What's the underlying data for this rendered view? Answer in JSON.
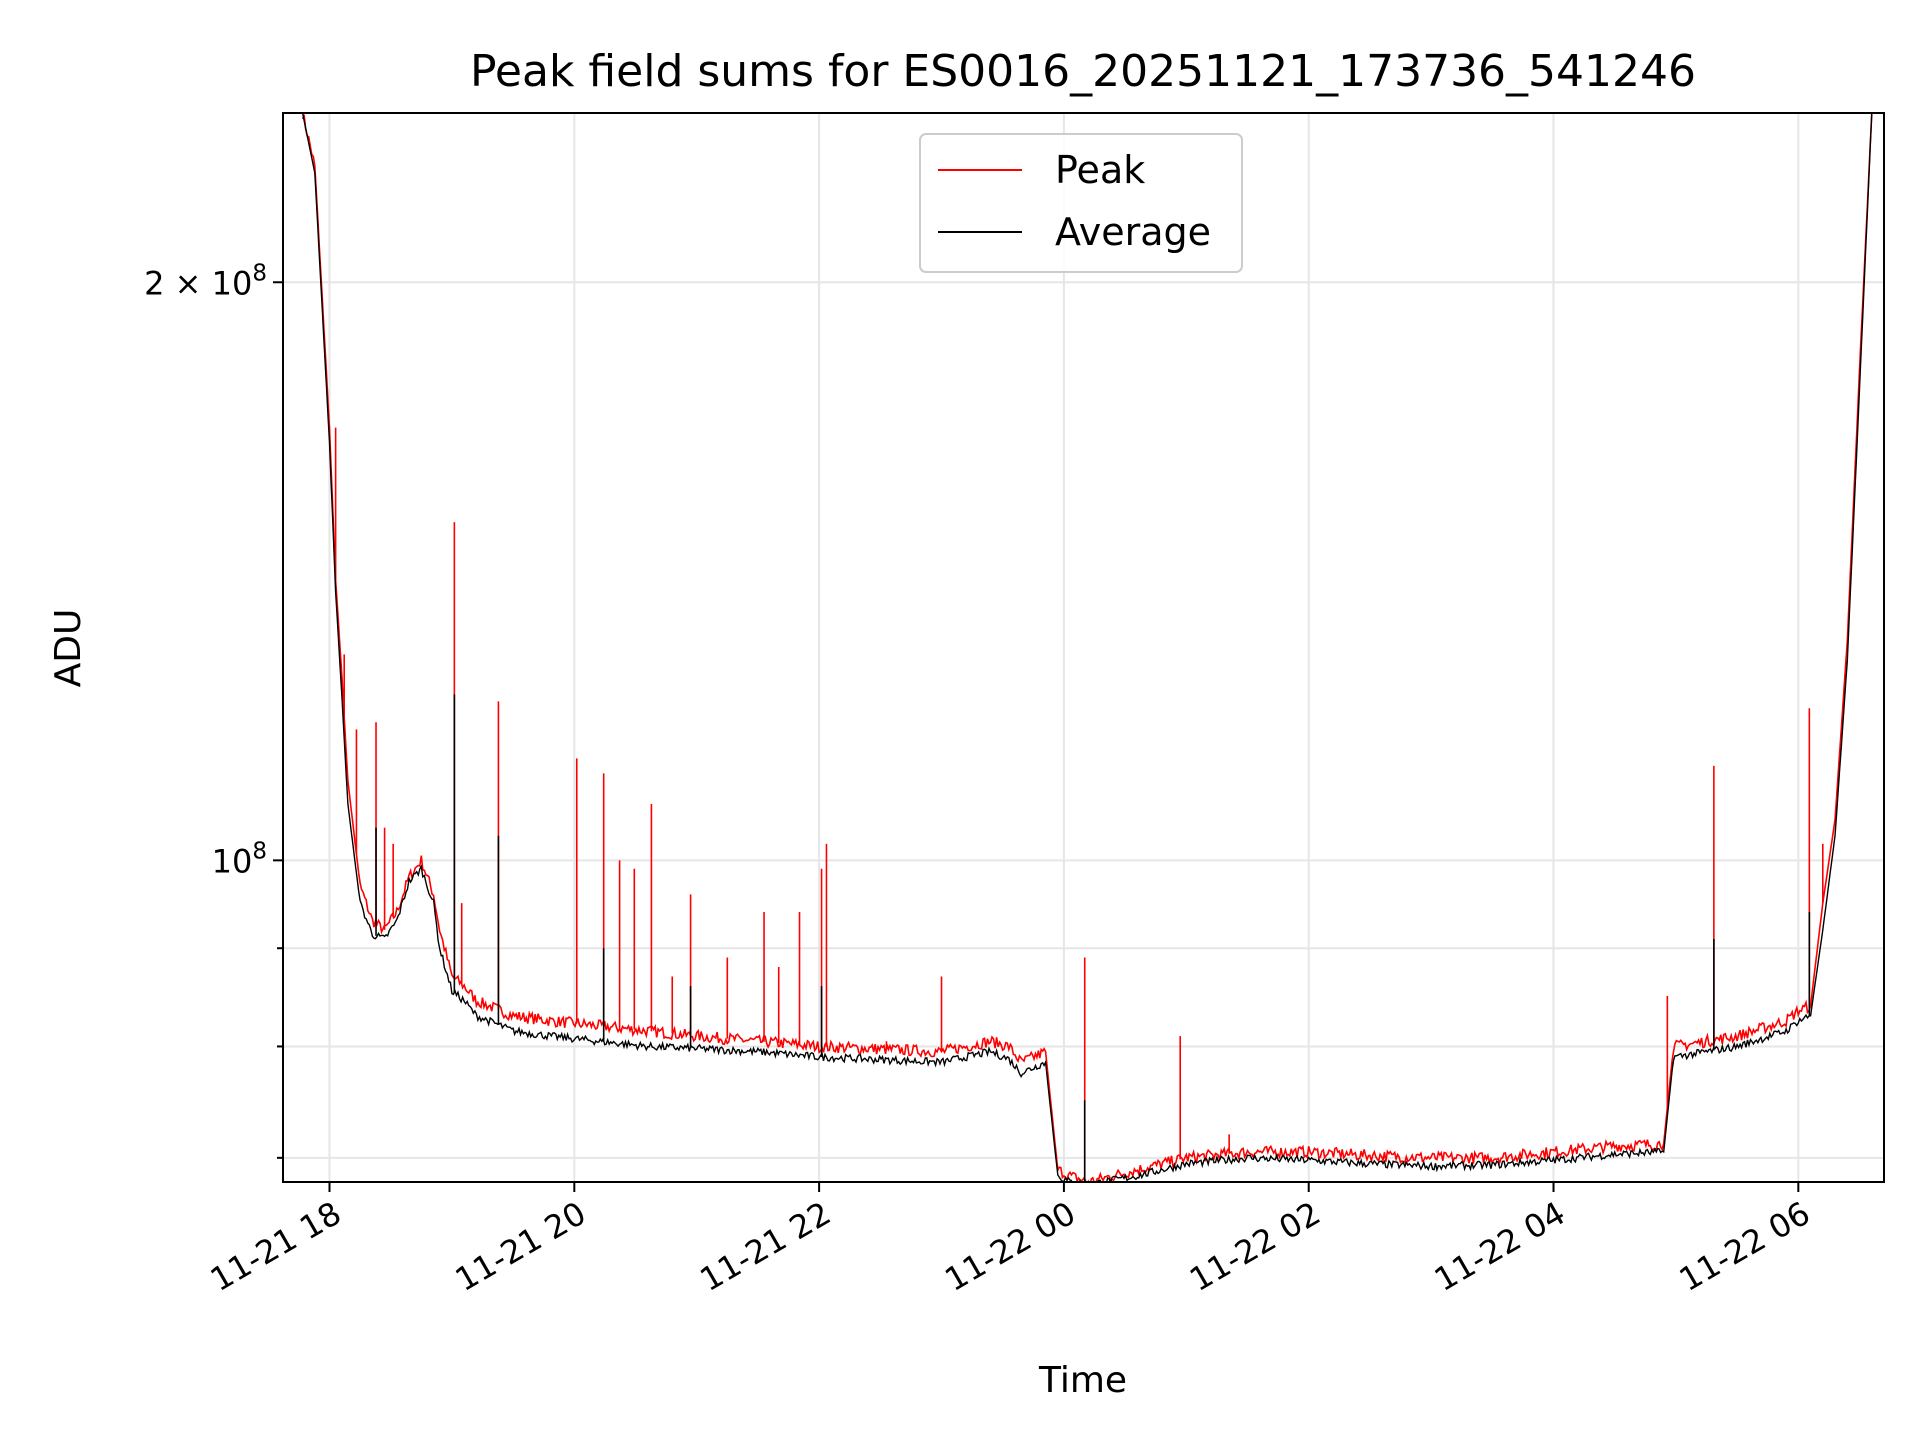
{
  "chart_data": {
    "type": "line",
    "title": "Peak field sums for ES0016_20251121_173736_541246",
    "xlabel": "Time",
    "ylabel": "ADU",
    "yscale": "log",
    "ylim": [
      68000000,
      245000000
    ],
    "xlim_hours": [
      -0.38,
      12.7
    ],
    "x_tick_hours": [
      0,
      2,
      4,
      6,
      8,
      10,
      12
    ],
    "x_tick_labels": [
      "11-21 18",
      "11-21 20",
      "11-21 22",
      "11-22 00",
      "11-22 02",
      "11-22 04",
      "11-22 06"
    ],
    "y_major_ticks": [
      {
        "value": 100000000,
        "base": "10",
        "exp": "8",
        "coef": ""
      },
      {
        "value": 200000000,
        "base": "10",
        "exp": "8",
        "coef": "2 × "
      }
    ],
    "y_minor_ticks": [
      70000000,
      80000000,
      90000000
    ],
    "legend": {
      "location": "upper center",
      "entries": [
        "Peak",
        "Average"
      ]
    },
    "series": [
      {
        "name": "Peak",
        "color": "#ff0000",
        "x": [
          -0.22,
          -0.12,
          0.0,
          0.05,
          0.1,
          0.15,
          0.25,
          0.35,
          0.45,
          0.55,
          0.65,
          0.75,
          0.85,
          0.9,
          1.0,
          1.1,
          1.2,
          1.3,
          1.4,
          1.5,
          1.8,
          2.2,
          2.6,
          3.0,
          3.5,
          4.0,
          5.0,
          5.4,
          5.55,
          5.65,
          5.85,
          5.95,
          6.05,
          6.2,
          6.6,
          7.0,
          7.5,
          8.0,
          8.5,
          9.0,
          9.5,
          10.0,
          10.5,
          10.9,
          10.98,
          11.1,
          11.5,
          11.9,
          12.0,
          12.1,
          12.2,
          12.3,
          12.4,
          12.5,
          12.6
        ],
        "y": [
          245000000,
          230000000,
          168000000,
          140000000,
          125000000,
          110000000,
          97000000,
          93000000,
          92000000,
          94000000,
          98000000,
          100000000,
          96000000,
          92000000,
          87000000,
          86000000,
          84500000,
          84000000,
          83500000,
          83000000,
          82500000,
          82000000,
          81500000,
          81000000,
          80500000,
          80000000,
          79500000,
          80500000,
          80000000,
          78500000,
          79500000,
          69000000,
          68500000,
          68000000,
          69000000,
          70000000,
          70500000,
          70500000,
          70200000,
          70000000,
          70000000,
          70500000,
          71000000,
          71200000,
          80000000,
          80200000,
          81000000,
          82500000,
          83500000,
          84000000,
          95000000,
          105000000,
          130000000,
          180000000,
          245000000
        ],
        "spikes": [
          {
            "x": 0.05,
            "y": 168000000
          },
          {
            "x": 0.12,
            "y": 128000000
          },
          {
            "x": 0.22,
            "y": 117000000
          },
          {
            "x": 0.38,
            "y": 118000000
          },
          {
            "x": 0.45,
            "y": 104000000
          },
          {
            "x": 0.52,
            "y": 102000000
          },
          {
            "x": 1.02,
            "y": 150000000
          },
          {
            "x": 1.08,
            "y": 95000000
          },
          {
            "x": 1.38,
            "y": 121000000
          },
          {
            "x": 2.02,
            "y": 113000000
          },
          {
            "x": 2.24,
            "y": 111000000
          },
          {
            "x": 2.37,
            "y": 100000000
          },
          {
            "x": 2.49,
            "y": 99000000
          },
          {
            "x": 2.63,
            "y": 107000000
          },
          {
            "x": 2.8,
            "y": 87000000
          },
          {
            "x": 2.95,
            "y": 96000000
          },
          {
            "x": 3.25,
            "y": 89000000
          },
          {
            "x": 3.55,
            "y": 94000000
          },
          {
            "x": 3.67,
            "y": 88000000
          },
          {
            "x": 3.84,
            "y": 94000000
          },
          {
            "x": 4.02,
            "y": 99000000
          },
          {
            "x": 4.06,
            "y": 102000000
          },
          {
            "x": 4.55,
            "y": 80500000
          },
          {
            "x": 5.0,
            "y": 87000000
          },
          {
            "x": 6.17,
            "y": 89000000
          },
          {
            "x": 6.95,
            "y": 81000000
          },
          {
            "x": 7.35,
            "y": 72000000
          },
          {
            "x": 10.93,
            "y": 85000000
          },
          {
            "x": 11.31,
            "y": 112000000
          },
          {
            "x": 12.09,
            "y": 120000000
          },
          {
            "x": 12.2,
            "y": 102000000
          }
        ]
      },
      {
        "name": "Average",
        "color": "#000000",
        "x": [
          -0.22,
          -0.12,
          0.0,
          0.05,
          0.1,
          0.15,
          0.25,
          0.35,
          0.45,
          0.55,
          0.65,
          0.75,
          0.85,
          0.9,
          1.0,
          1.1,
          1.2,
          1.3,
          1.4,
          1.5,
          1.8,
          2.2,
          2.6,
          3.0,
          3.5,
          4.0,
          5.0,
          5.4,
          5.55,
          5.65,
          5.85,
          5.95,
          6.05,
          6.2,
          6.6,
          7.0,
          7.5,
          8.0,
          8.5,
          9.0,
          9.5,
          10.0,
          10.5,
          10.9,
          10.98,
          11.1,
          11.5,
          11.9,
          12.0,
          12.1,
          12.2,
          12.3,
          12.4,
          12.5,
          12.6
        ],
        "y": [
          245000000,
          228000000,
          165000000,
          138000000,
          122000000,
          107000000,
          95000000,
          91500000,
          91000000,
          93000000,
          97500000,
          99000000,
          95000000,
          90000000,
          85500000,
          84500000,
          83000000,
          82500000,
          82000000,
          81500000,
          81000000,
          80500000,
          80000000,
          79800000,
          79500000,
          79000000,
          78500000,
          79500000,
          78800000,
          77500000,
          78500000,
          68500000,
          68000000,
          67800000,
          68500000,
          69500000,
          70000000,
          69800000,
          69500000,
          69300000,
          69400000,
          69800000,
          70300000,
          70500000,
          79000000,
          79200000,
          80000000,
          81500000,
          82500000,
          83000000,
          92000000,
          103000000,
          127000000,
          176000000,
          245000000
        ],
        "spikes": [
          {
            "x": 1.02,
            "y": 122000000
          },
          {
            "x": 1.38,
            "y": 103000000
          },
          {
            "x": 0.38,
            "y": 104000000
          },
          {
            "x": 11.31,
            "y": 91000000
          },
          {
            "x": 12.09,
            "y": 94000000
          },
          {
            "x": 6.17,
            "y": 75000000
          },
          {
            "x": 2.24,
            "y": 90000000
          },
          {
            "x": 4.02,
            "y": 86000000
          },
          {
            "x": 2.95,
            "y": 86000000
          }
        ]
      }
    ]
  }
}
